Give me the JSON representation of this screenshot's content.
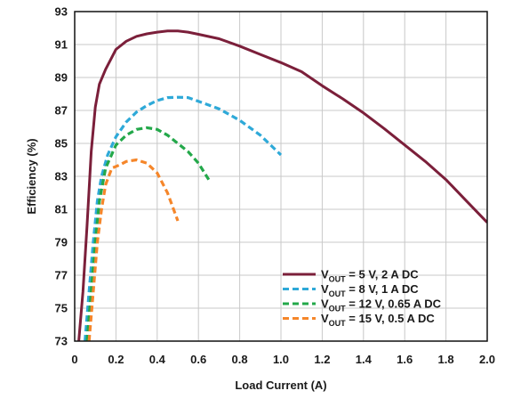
{
  "chart_data": {
    "type": "line",
    "xlabel": "Load Current (A)",
    "ylabel": "Efficiency (%)",
    "xlim": [
      0,
      2.0
    ],
    "ylim": [
      73,
      93
    ],
    "x_ticks": [
      "0",
      "0.2",
      "0.4",
      "0.6",
      "0.8",
      "1.0",
      "1.2",
      "1.4",
      "1.6",
      "1.8",
      "2.0"
    ],
    "y_ticks": [
      "73",
      "75",
      "77",
      "79",
      "81",
      "83",
      "85",
      "87",
      "89",
      "91",
      "93"
    ],
    "grid": true,
    "legend_position": "bottom-right",
    "series": [
      {
        "legend": {
          "prefix": "V",
          "sub": "OUT",
          "suffix": " = 5 V, 2 A DC"
        },
        "color": "#7b1f3a",
        "dash": "solid",
        "points": [
          [
            0.02,
            73.0
          ],
          [
            0.04,
            76.0
          ],
          [
            0.06,
            80.0
          ],
          [
            0.08,
            84.5
          ],
          [
            0.1,
            87.2
          ],
          [
            0.12,
            88.6
          ],
          [
            0.15,
            89.5
          ],
          [
            0.2,
            90.7
          ],
          [
            0.25,
            91.2
          ],
          [
            0.3,
            91.5
          ],
          [
            0.35,
            91.65
          ],
          [
            0.4,
            91.75
          ],
          [
            0.45,
            91.82
          ],
          [
            0.5,
            91.82
          ],
          [
            0.55,
            91.75
          ],
          [
            0.6,
            91.62
          ],
          [
            0.7,
            91.35
          ],
          [
            0.8,
            90.9
          ],
          [
            0.9,
            90.4
          ],
          [
            1.0,
            89.9
          ],
          [
            1.1,
            89.35
          ],
          [
            1.2,
            88.5
          ],
          [
            1.3,
            87.7
          ],
          [
            1.4,
            86.85
          ],
          [
            1.5,
            85.9
          ],
          [
            1.6,
            84.9
          ],
          [
            1.7,
            83.9
          ],
          [
            1.8,
            82.8
          ],
          [
            1.9,
            81.5
          ],
          [
            2.0,
            80.2
          ]
        ]
      },
      {
        "legend": {
          "prefix": "V",
          "sub": "OUT",
          "suffix": " = 8 V, 1 A DC"
        },
        "color": "#2ea9d8",
        "dash": "dashed",
        "points": [
          [
            0.05,
            73.0
          ],
          [
            0.07,
            76.0
          ],
          [
            0.09,
            79.0
          ],
          [
            0.11,
            81.5
          ],
          [
            0.13,
            83.0
          ],
          [
            0.16,
            84.3
          ],
          [
            0.2,
            85.4
          ],
          [
            0.25,
            86.3
          ],
          [
            0.3,
            86.9
          ],
          [
            0.35,
            87.3
          ],
          [
            0.4,
            87.6
          ],
          [
            0.45,
            87.78
          ],
          [
            0.5,
            87.8
          ],
          [
            0.55,
            87.78
          ],
          [
            0.6,
            87.55
          ],
          [
            0.7,
            87.1
          ],
          [
            0.8,
            86.4
          ],
          [
            0.9,
            85.5
          ],
          [
            1.0,
            84.3
          ]
        ]
      },
      {
        "legend": {
          "prefix": "V",
          "sub": "OUT",
          "suffix": " = 12 V, 0.65 A DC"
        },
        "color": "#23a84a",
        "dash": "dashed",
        "points": [
          [
            0.06,
            73.0
          ],
          [
            0.08,
            76.0
          ],
          [
            0.1,
            79.0
          ],
          [
            0.12,
            81.5
          ],
          [
            0.15,
            83.5
          ],
          [
            0.2,
            84.9
          ],
          [
            0.25,
            85.5
          ],
          [
            0.3,
            85.85
          ],
          [
            0.35,
            85.95
          ],
          [
            0.4,
            85.85
          ],
          [
            0.45,
            85.5
          ],
          [
            0.5,
            85.0
          ],
          [
            0.55,
            84.5
          ],
          [
            0.6,
            83.8
          ],
          [
            0.65,
            82.8
          ]
        ]
      },
      {
        "legend": {
          "prefix": "V",
          "sub": "OUT",
          "suffix": " = 15 V, 0.5 A DC"
        },
        "color": "#f5862a",
        "dash": "dashed",
        "points": [
          [
            0.07,
            73.0
          ],
          [
            0.09,
            76.0
          ],
          [
            0.11,
            79.0
          ],
          [
            0.13,
            81.0
          ],
          [
            0.15,
            82.5
          ],
          [
            0.18,
            83.5
          ],
          [
            0.22,
            83.7
          ],
          [
            0.25,
            83.9
          ],
          [
            0.3,
            84.0
          ],
          [
            0.35,
            83.8
          ],
          [
            0.4,
            83.2
          ],
          [
            0.45,
            82.0
          ],
          [
            0.5,
            80.3
          ]
        ]
      }
    ]
  }
}
